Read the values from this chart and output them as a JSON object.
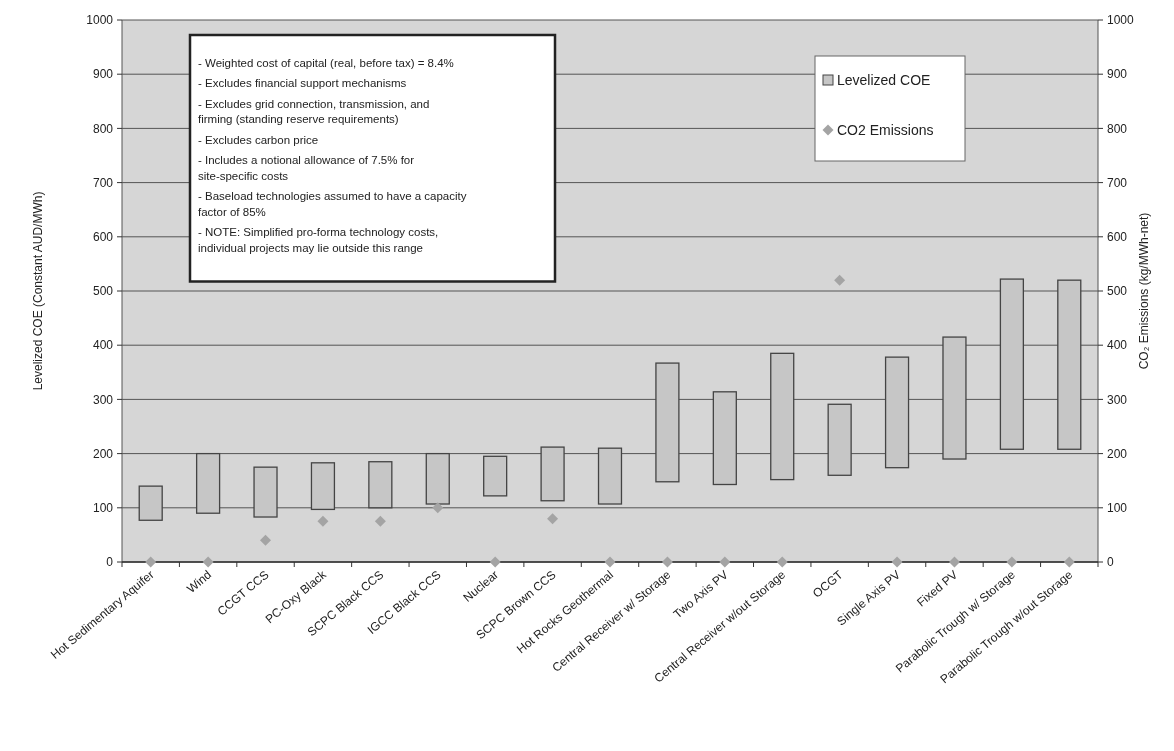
{
  "chart_data": {
    "type": "bar",
    "ylabel": "Levelized COE (Constant AUD/MWh)",
    "y2label": "CO₂ Emissions (kg/MWh-net)",
    "categories": [
      "Hot Sedimentary Aquifer",
      "Wind",
      "CCGT CCS",
      "PC-Oxy Black",
      "SCPC Black CCS",
      "IGCC Black CCS",
      "Nuclear",
      "SCPC Brown CCS",
      "Hot Rocks Geothermal",
      "Central Receiver w/ Storage",
      "Two Axis PV",
      "Central Receiver w/out Storage",
      "OCGT",
      "Single Axis PV",
      "Fixed PV",
      "Parabolic Trough w/ Storage",
      "Parabolic Trough w/out Storage"
    ],
    "series": [
      {
        "name": "Levelized COE",
        "color": "#c6c6c6",
        "base": [
          77,
          90,
          83,
          97,
          100,
          107,
          122,
          113,
          107,
          148,
          143,
          152,
          160,
          174,
          190,
          208,
          208
        ],
        "values": [
          63,
          110,
          92,
          86,
          85,
          93,
          73,
          99,
          103,
          219,
          171,
          233,
          131,
          204,
          225,
          314,
          312
        ]
      },
      {
        "name": "CO2 Emissions",
        "type": "scatter",
        "axis": "y2",
        "marker": "diamond",
        "color": "#a4a4a4",
        "values": [
          0,
          0,
          40,
          75,
          75,
          100,
          0,
          80,
          0,
          0,
          0,
          0,
          520,
          0,
          0,
          0,
          0
        ]
      }
    ],
    "ylim": [
      0,
      1000
    ],
    "yticks": [
      0,
      100,
      200,
      300,
      400,
      500,
      600,
      700,
      800,
      900,
      1000
    ],
    "y2lim": [
      0,
      1000
    ],
    "y2ticks": [
      0,
      100,
      200,
      300,
      400,
      500,
      600,
      700,
      800,
      900,
      1000
    ],
    "grid": "y",
    "legend": "top right",
    "annotations": [
      "- Weighted cost of capital (real, before tax) = 8.4%",
      "- Excludes financial support mechanisms",
      "- Excludes grid connection, transmission, and firming (standing reserve requirements)",
      "- Excludes carbon price",
      "- Includes a notional allowance of 7.5% for site-specific costs",
      "- Baseload technologies assumed to have a capacity factor of 85%",
      "- NOTE: Simplified pro-forma technology costs, individual projects may lie outside this range"
    ]
  }
}
